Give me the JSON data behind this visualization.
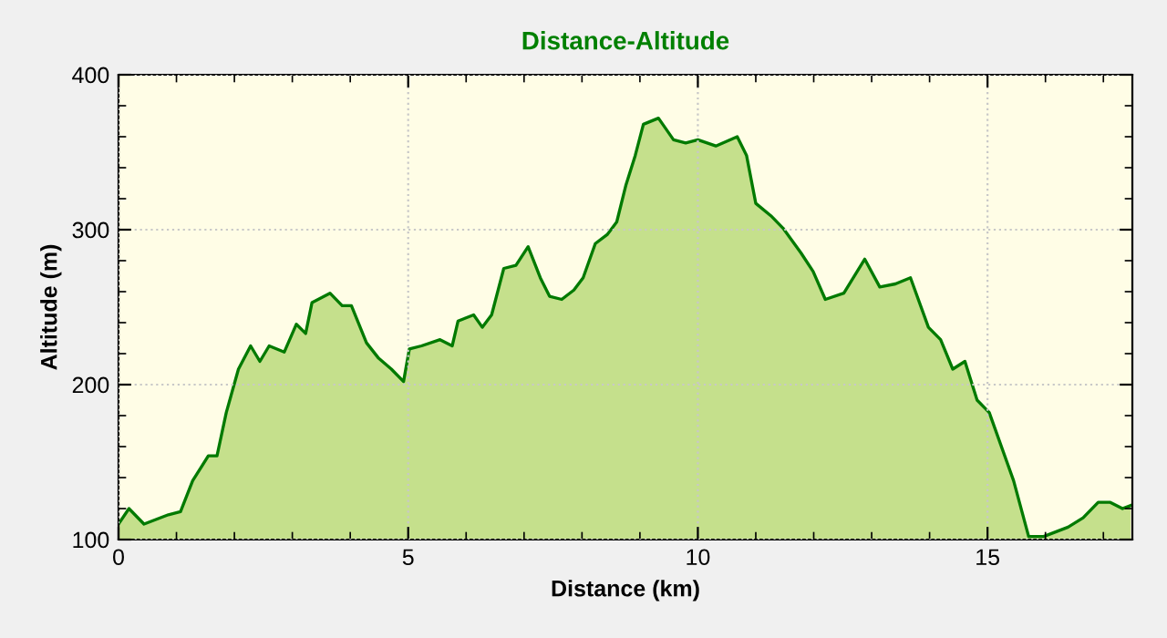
{
  "chart_data": {
    "type": "area",
    "title": "Distance-Altitude",
    "xlabel": "Distance (km)",
    "ylabel": "Altitude (m)",
    "xlim": [
      0,
      17.5
    ],
    "ylim": [
      100,
      400
    ],
    "xticks": [
      0,
      5,
      10,
      15
    ],
    "yticks": [
      100,
      200,
      300,
      400
    ],
    "grid": true,
    "series": [
      {
        "color": "#007a00",
        "x": [
          0,
          0.18,
          0.44,
          0.86,
          1.07,
          1.28,
          1.55,
          1.7,
          1.86,
          2.07,
          2.28,
          2.44,
          2.6,
          2.86,
          3.07,
          3.23,
          3.34,
          3.65,
          3.86,
          4.02,
          4.28,
          4.49,
          4.71,
          4.92,
          5.02,
          5.23,
          5.55,
          5.76,
          5.86,
          6.13,
          6.28,
          6.44,
          6.65,
          6.86,
          7.07,
          7.28,
          7.44,
          7.65,
          7.86,
          8.02,
          8.23,
          8.44,
          8.6,
          8.76,
          8.92,
          9.06,
          9.32,
          9.58,
          9.79,
          10.0,
          10.31,
          10.68,
          10.84,
          11.0,
          11.26,
          11.47,
          11.78,
          11.99,
          12.2,
          12.52,
          12.88,
          13.14,
          13.41,
          13.67,
          13.98,
          14.19,
          14.4,
          14.61,
          14.82,
          15.03,
          15.45,
          15.71,
          15.97,
          16.39,
          16.65,
          16.91,
          17.12,
          17.33,
          17.47
        ],
        "values": [
          110,
          120,
          110,
          116,
          118,
          138,
          154,
          154,
          182,
          210,
          225,
          215,
          225,
          221,
          239,
          233,
          253,
          259,
          251,
          251,
          227,
          217,
          210,
          202,
          223,
          225,
          229,
          225,
          241,
          245,
          237,
          245,
          275,
          277,
          289,
          269,
          257,
          255,
          261,
          269,
          291,
          297,
          305,
          329,
          348,
          368,
          372,
          358,
          356,
          358,
          354,
          360,
          348,
          317,
          309,
          301,
          285,
          273,
          255,
          259,
          281,
          263,
          265,
          269,
          237,
          229,
          210,
          215,
          190,
          182,
          138,
          102,
          102,
          108,
          114,
          124,
          124,
          120,
          122
        ]
      }
    ]
  }
}
